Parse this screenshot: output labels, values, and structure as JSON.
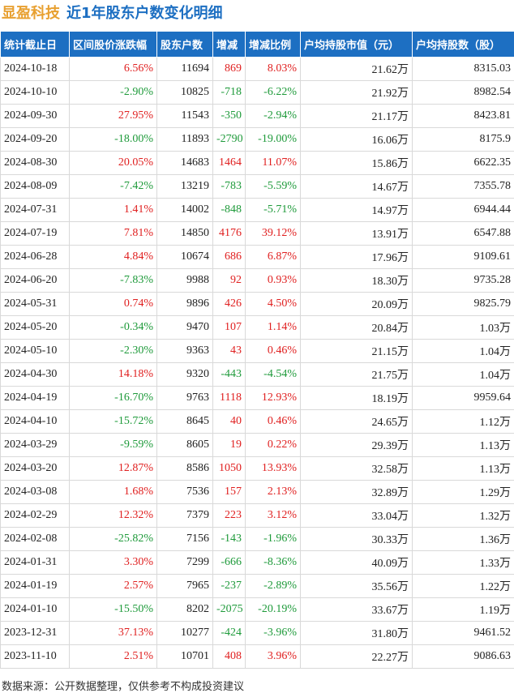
{
  "title": {
    "company": "显盈科技",
    "text": "近1年股东户数变化明细"
  },
  "table": {
    "headers": [
      "统计截止日",
      "区间股价涨跌幅",
      "股东户数",
      "增减",
      "增减比例",
      "户均持股市值（元）",
      "户均持股数（股）"
    ],
    "rows": [
      [
        "2024-10-18",
        "6.56%",
        "11694",
        "869",
        "8.03%",
        "21.62万",
        "8315.03"
      ],
      [
        "2024-10-10",
        "-2.90%",
        "10825",
        "-718",
        "-6.22%",
        "21.92万",
        "8982.54"
      ],
      [
        "2024-09-30",
        "27.95%",
        "11543",
        "-350",
        "-2.94%",
        "21.17万",
        "8423.81"
      ],
      [
        "2024-09-20",
        "-18.00%",
        "11893",
        "-2790",
        "-19.00%",
        "16.06万",
        "8175.9"
      ],
      [
        "2024-08-30",
        "20.05%",
        "14683",
        "1464",
        "11.07%",
        "15.86万",
        "6622.35"
      ],
      [
        "2024-08-09",
        "-7.42%",
        "13219",
        "-783",
        "-5.59%",
        "14.67万",
        "7355.78"
      ],
      [
        "2024-07-31",
        "1.41%",
        "14002",
        "-848",
        "-5.71%",
        "14.97万",
        "6944.44"
      ],
      [
        "2024-07-19",
        "7.81%",
        "14850",
        "4176",
        "39.12%",
        "13.91万",
        "6547.88"
      ],
      [
        "2024-06-28",
        "4.84%",
        "10674",
        "686",
        "6.87%",
        "17.96万",
        "9109.61"
      ],
      [
        "2024-06-20",
        "-7.83%",
        "9988",
        "92",
        "0.93%",
        "18.30万",
        "9735.28"
      ],
      [
        "2024-05-31",
        "0.74%",
        "9896",
        "426",
        "4.50%",
        "20.09万",
        "9825.79"
      ],
      [
        "2024-05-20",
        "-0.34%",
        "9470",
        "107",
        "1.14%",
        "20.84万",
        "1.03万"
      ],
      [
        "2024-05-10",
        "-2.30%",
        "9363",
        "43",
        "0.46%",
        "21.15万",
        "1.04万"
      ],
      [
        "2024-04-30",
        "14.18%",
        "9320",
        "-443",
        "-4.54%",
        "21.75万",
        "1.04万"
      ],
      [
        "2024-04-19",
        "-16.70%",
        "9763",
        "1118",
        "12.93%",
        "18.19万",
        "9959.64"
      ],
      [
        "2024-04-10",
        "-15.72%",
        "8645",
        "40",
        "0.46%",
        "24.65万",
        "1.12万"
      ],
      [
        "2024-03-29",
        "-9.59%",
        "8605",
        "19",
        "0.22%",
        "29.39万",
        "1.13万"
      ],
      [
        "2024-03-20",
        "12.87%",
        "8586",
        "1050",
        "13.93%",
        "32.58万",
        "1.13万"
      ],
      [
        "2024-03-08",
        "1.68%",
        "7536",
        "157",
        "2.13%",
        "32.89万",
        "1.29万"
      ],
      [
        "2024-02-29",
        "12.32%",
        "7379",
        "223",
        "3.12%",
        "33.04万",
        "1.32万"
      ],
      [
        "2024-02-08",
        "-25.82%",
        "7156",
        "-143",
        "-1.96%",
        "30.33万",
        "1.36万"
      ],
      [
        "2024-01-31",
        "3.30%",
        "7299",
        "-666",
        "-8.36%",
        "40.09万",
        "1.33万"
      ],
      [
        "2024-01-19",
        "2.57%",
        "7965",
        "-237",
        "-2.89%",
        "35.56万",
        "1.22万"
      ],
      [
        "2024-01-10",
        "-15.50%",
        "8202",
        "-2075",
        "-20.19%",
        "33.67万",
        "1.19万"
      ],
      [
        "2023-12-31",
        "37.13%",
        "10277",
        "-424",
        "-3.96%",
        "31.80万",
        "9461.52"
      ],
      [
        "2023-11-10",
        "2.51%",
        "10701",
        "408",
        "3.96%",
        "22.27万",
        "9086.63"
      ]
    ]
  },
  "footer": {
    "source": "数据来源：公开数据整理，仅供参考不构成投资建议"
  }
}
